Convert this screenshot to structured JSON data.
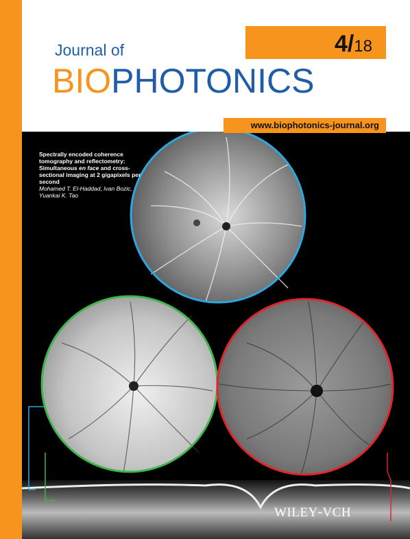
{
  "journal": {
    "prefix": "Journal of",
    "title_part1": "BIO",
    "title_part2": "PHOTONICS",
    "issue_number": "4/",
    "issue_year": "18",
    "url": "www.biophotonics-journal.org"
  },
  "article": {
    "title_line1": "Spectrally encoded coherence tomography and reflectometry:",
    "title_pre": "Simultaneous ",
    "title_em": "en face",
    "title_post": " and cross-sectional imaging at 2 gigapixels per second",
    "authors": "Mohamed T. El-Haddad, Ivan Bozic, Yuankai K. Tao"
  },
  "publisher": {
    "name": "WILEY",
    "suffix": "VCH"
  },
  "colors": {
    "accent_orange": "#f7941d",
    "title_blue": "#1f5da8",
    "ring_blue": "#2aa9e0",
    "ring_green": "#3db54a",
    "ring_red": "#e0262b"
  }
}
